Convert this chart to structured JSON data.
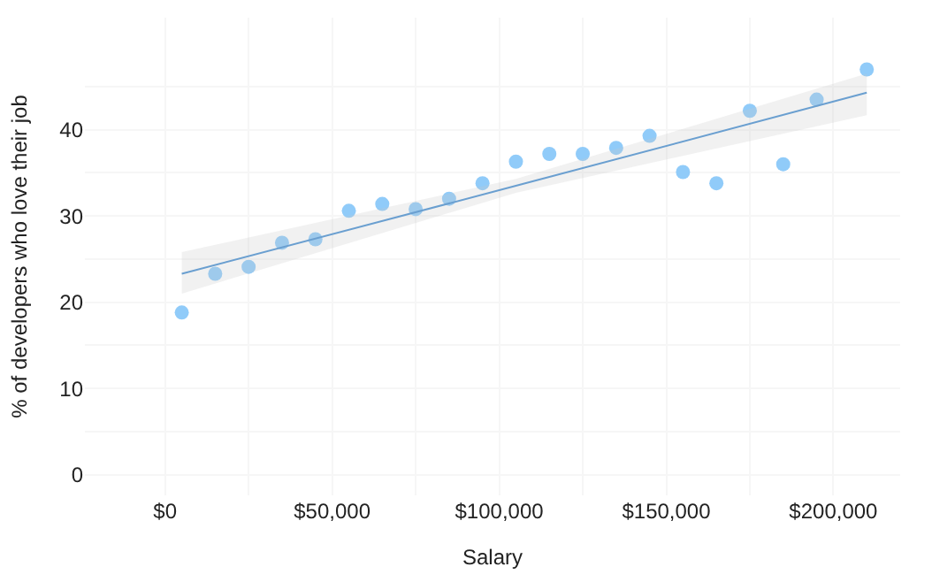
{
  "chart_data": {
    "type": "scatter",
    "xlabel": "Salary",
    "ylabel": "% of developers who love their job",
    "x": [
      5000,
      15000,
      25000,
      35000,
      45000,
      55000,
      65000,
      75000,
      85000,
      95000,
      105000,
      115000,
      125000,
      135000,
      145000,
      155000,
      165000,
      175000,
      185000,
      195000,
      210000
    ],
    "series": [
      {
        "color": "#90cbf9",
        "marker": "circle",
        "values": [
          18.8,
          23.3,
          24.1,
          26.9,
          27.3,
          30.6,
          31.4,
          30.8,
          32.0,
          33.8,
          36.3,
          37.2,
          37.2,
          37.9,
          39.3,
          35.1,
          33.8,
          42.2,
          36.0,
          43.5,
          47.0
        ]
      },
      {
        "type": "line",
        "color": "#6a9fd0",
        "x": [
          5000,
          105000,
          210000
        ],
        "values": [
          23.3,
          33.5,
          44.3
        ],
        "lower": [
          21.0,
          32.7,
          41.7
        ],
        "upper": [
          25.8,
          34.3,
          46.5
        ]
      }
    ],
    "xlim": [
      -24000,
      220000
    ],
    "ylim": [
      -2.4,
      53
    ],
    "xticks": [
      {
        "value": 0,
        "label": "$0"
      },
      {
        "value": 25000,
        "label": null
      },
      {
        "value": 50000,
        "label": "$50,000"
      },
      {
        "value": 75000,
        "label": null
      },
      {
        "value": 100000,
        "label": "$100,000"
      },
      {
        "value": 125000,
        "label": null
      },
      {
        "value": 150000,
        "label": "$150,000"
      },
      {
        "value": 175000,
        "label": null
      },
      {
        "value": 200000,
        "label": "$200,000"
      }
    ],
    "yticks": [
      0,
      {
        "value": 5,
        "label": null
      },
      10,
      {
        "value": 15,
        "label": null
      },
      20,
      {
        "value": 25,
        "label": null
      },
      30,
      {
        "value": 35,
        "label": null
      },
      40,
      {
        "value": 45,
        "label": null
      }
    ],
    "grid": true
  }
}
